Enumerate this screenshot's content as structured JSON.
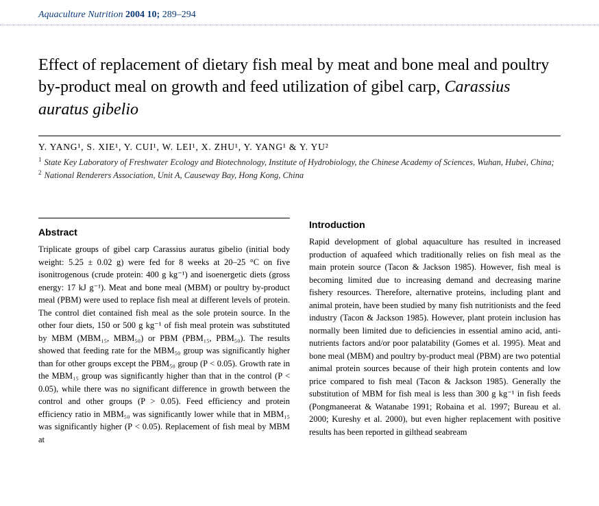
{
  "header": {
    "journal": "Aquaculture Nutrition",
    "year_vol": "2004 10;",
    "pages": "289–294"
  },
  "title": {
    "main": "Effect of replacement of dietary fish meal by meat and bone meal and poultry by-product meal on growth and feed utilization of gibel carp, ",
    "species": "Carassius auratus gibelio"
  },
  "authors": "Y. YANG¹, S. XIE¹, Y. CUI¹, W. LEI¹, X. ZHU¹, Y. YANG¹ & Y. YU²",
  "affiliations": {
    "a1_sup": "1",
    "a1": "State Key Laboratory of Freshwater Ecology and Biotechnology, Institute of Hydrobiology, the Chinese Academy of Sciences, Wuhan, Hubei, China; ",
    "a2_sup": "2",
    "a2": "National Renderers Association, Unit A, Causeway Bay, Hong Kong, China"
  },
  "abstract_head": "Abstract",
  "abstract_body": "Triplicate groups of gibel carp Carassius auratus gibelio (initial body weight: 5.25 ± 0.02 g) were fed for 8 weeks at 20–25 °C on five isonitrogenous (crude protein: 400 g kg⁻¹) and isoenergetic diets (gross energy: 17 kJ g⁻¹). Meat and bone meal (MBM) or poultry by-product meal (PBM) were used to replace fish meal at different levels of protein. The control diet contained fish meal as the sole protein source. In the other four diets, 150 or 500 g kg⁻¹ of fish meal protein was substituted by MBM (MBM₁₅, MBM₅₀) or PBM (PBM₁₅, PBM₅₀). The results showed that feeding rate for the MBM₅₀ group was significantly higher than for other groups except the PBM₅₀ group (P < 0.05). Growth rate in the MBM₁₅ group was significantly higher than that in the control (P < 0.05), while there was no significant difference in growth between the control and other groups (P > 0.05). Feed efficiency and protein efficiency ratio in MBM₅₀ was significantly lower while that in MBM₁₅ was significantly higher (P < 0.05). Replacement of fish meal by MBM at",
  "intro_head": "Introduction",
  "intro_body": "Rapid development of global aquaculture has resulted in increased production of aquafeed which traditionally relies on fish meal as the main protein source (Tacon & Jackson 1985). However, fish meal is becoming limited due to increasing demand and decreasing marine fishery resources. Therefore, alternative proteins, including plant and animal protein, have been studied by many fish nutritionists and the feed industry (Tacon & Jackson 1985). However, plant protein inclusion has normally been limited due to deficiencies in essential amino acid, anti-nutrients factors and/or poor palatability (Gomes et al. 1995). Meat and bone meal (MBM) and poultry by-product meal (PBM) are two potential animal protein sources because of their high protein contents and low price compared to fish meal (Tacon & Jackson 1985). Generally the substitution of MBM for fish meal is less than 300 g kg⁻¹ in fish feeds (Pongmaneerat & Watanabe 1991; Robaina et al. 1997; Bureau et al. 2000; Kureshy et al. 2000), but even higher replacement with positive results has been reported in gilthead seabream"
}
